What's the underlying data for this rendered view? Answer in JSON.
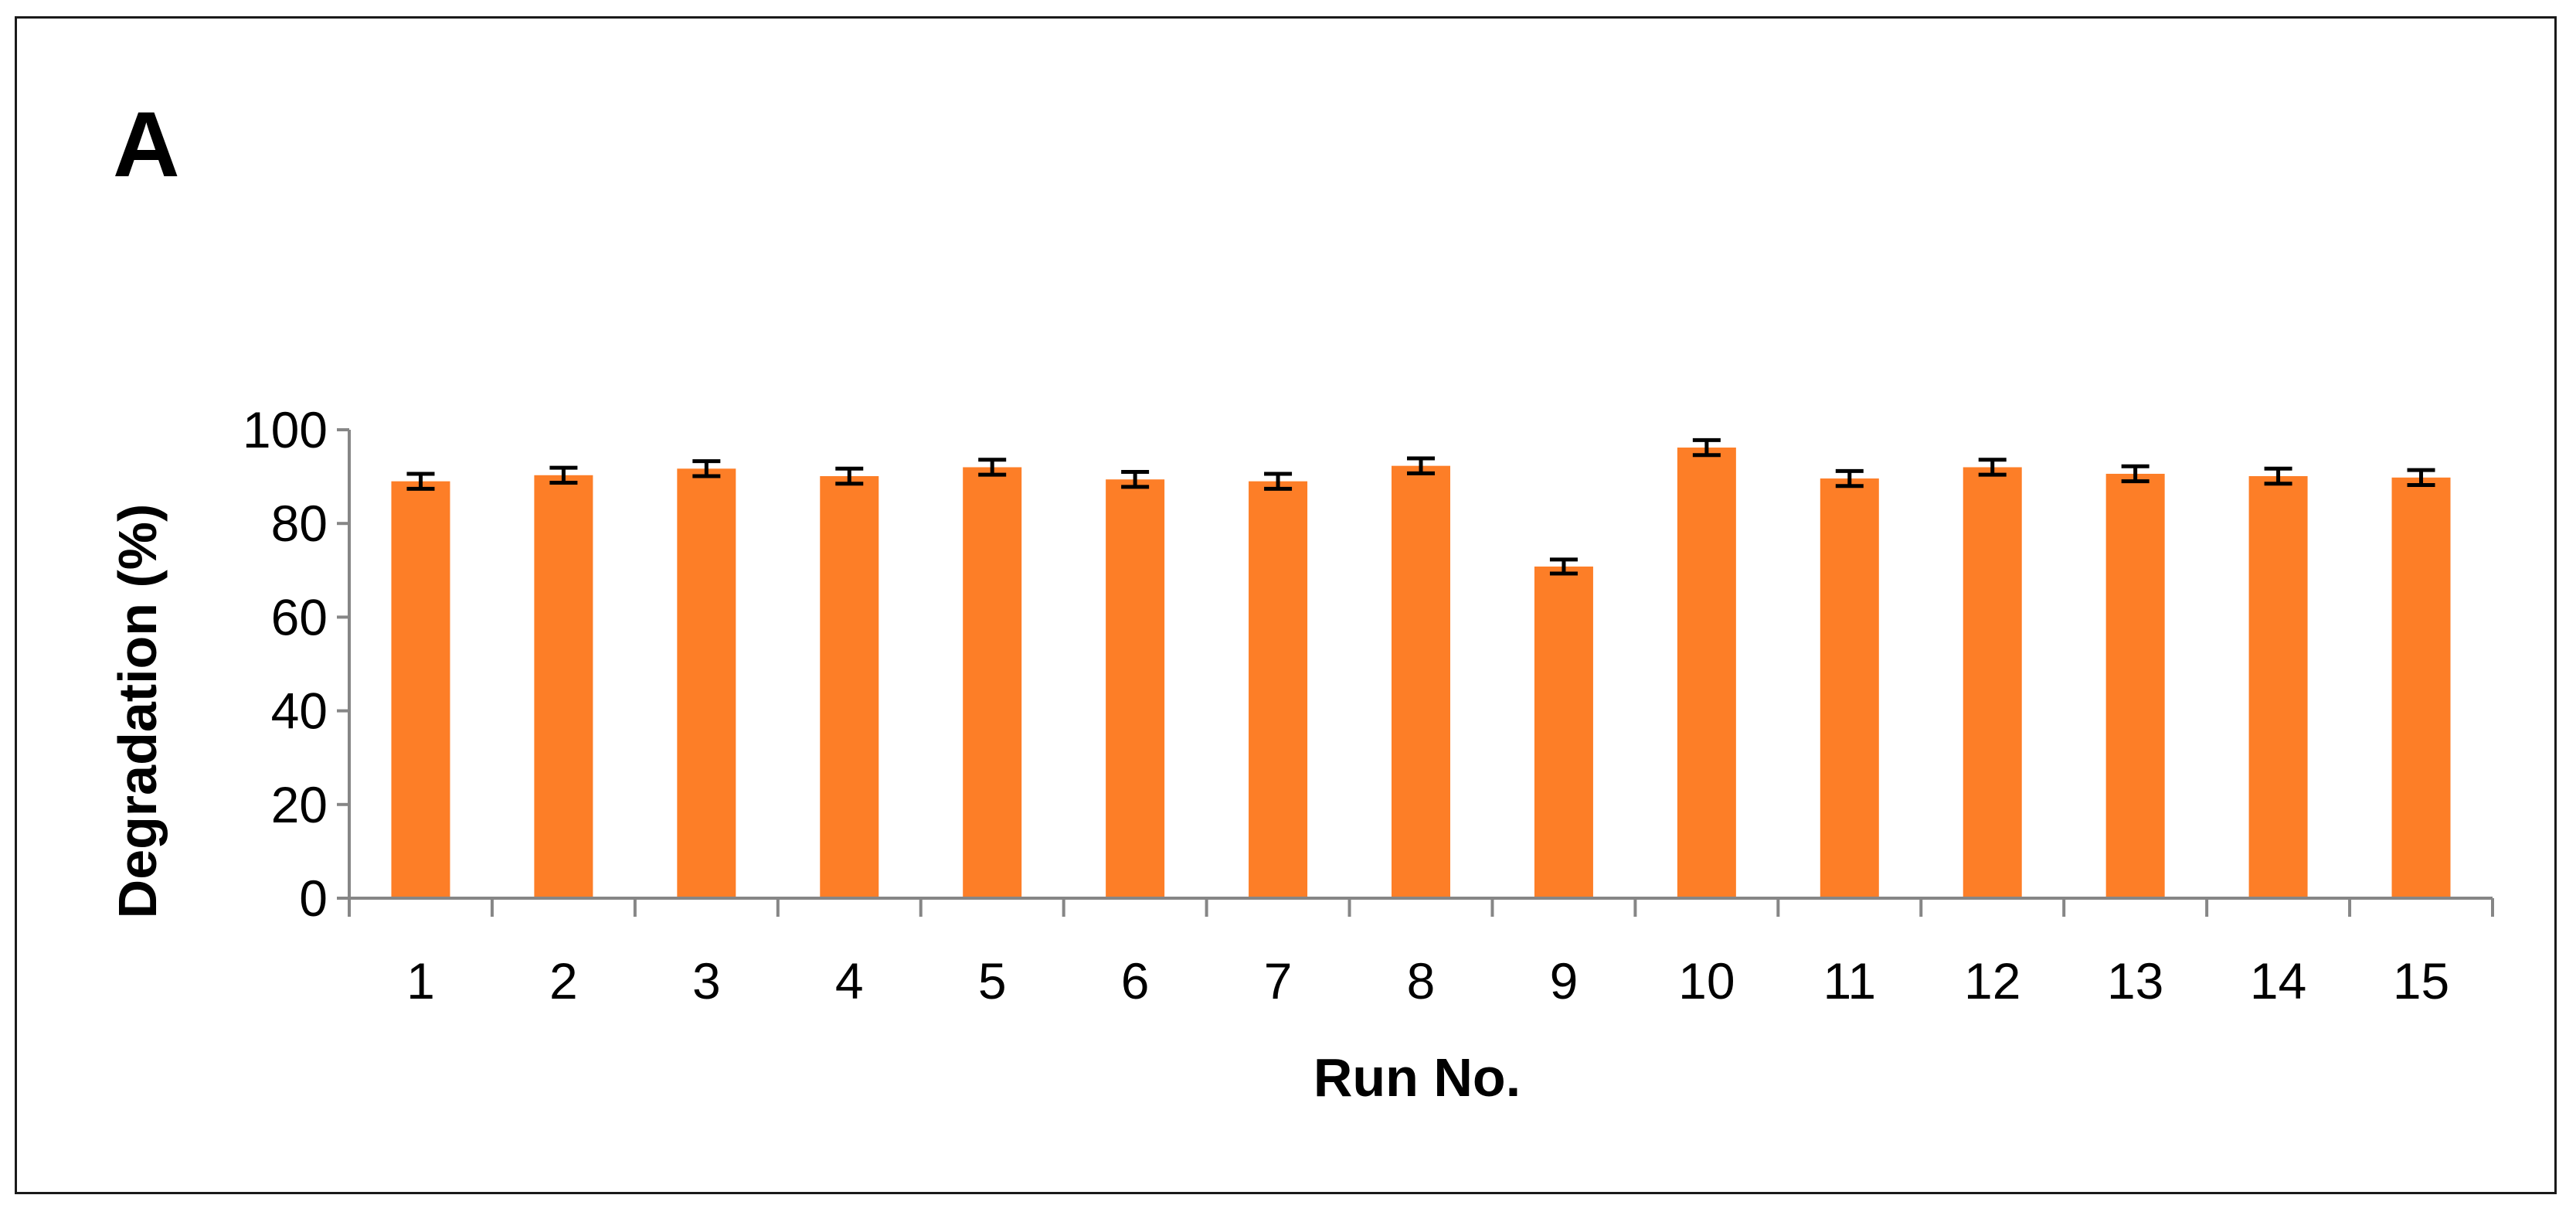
{
  "chart_data": {
    "type": "bar",
    "panel_label": "A",
    "title": "",
    "xlabel": "Run No.",
    "ylabel": "Degradation (%)",
    "ylim": [
      0,
      100
    ],
    "yticks": [
      "0",
      "20",
      "40",
      "60",
      "80",
      "100"
    ],
    "grid": false,
    "legend": "none",
    "categories": [
      "1",
      "2",
      "3",
      "4",
      "5",
      "6",
      "7",
      "8",
      "9",
      "10",
      "11",
      "12",
      "13",
      "14",
      "15"
    ],
    "series": [
      {
        "values": [
          89.0,
          90.3,
          91.7,
          90.1,
          92.0,
          89.4,
          89.0,
          92.3,
          70.8,
          96.2,
          89.6,
          92.0,
          90.6,
          90.1,
          89.8
        ],
        "errors": [
          1.6,
          1.6,
          1.6,
          1.6,
          1.6,
          1.6,
          1.6,
          1.6,
          1.5,
          1.6,
          1.6,
          1.6,
          1.6,
          1.6,
          1.6
        ],
        "color": "#fd7e27"
      }
    ],
    "axis_color": "#868686",
    "error_bar_color": "#000000"
  }
}
